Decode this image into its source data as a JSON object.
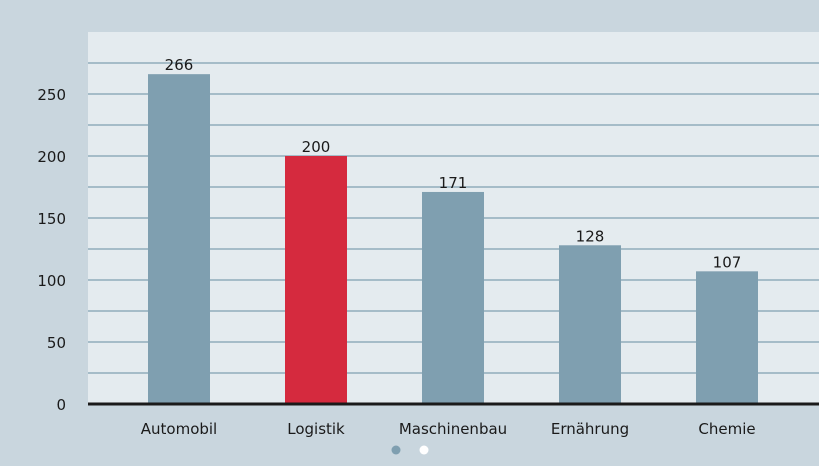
{
  "chart_data": {
    "type": "bar",
    "title": "",
    "xlabel": "",
    "ylabel": "",
    "categories": [
      "Automobil",
      "Logistik",
      "Maschinenbau",
      "Ernährung",
      "Chemie"
    ],
    "values": [
      266,
      200,
      171,
      128,
      107
    ],
    "data_labels": [
      "266",
      "200",
      "171",
      "128",
      "107"
    ],
    "ylim": [
      0,
      275
    ],
    "yticks": [
      0,
      50,
      100,
      150,
      200,
      250
    ],
    "ytick_labels": [
      "0",
      "50",
      "100",
      "150",
      "200",
      "250"
    ],
    "grid": true,
    "legend": "none",
    "colors": {
      "background": "#c9d6de",
      "plot_background": "#e4ebef",
      "bar_default": "#7f9fb0",
      "bar_highlight": "#d52a3e",
      "highlight_index": 1,
      "gridline": "#7f9fb0",
      "axis": "#1a1a1a"
    }
  },
  "pager": {
    "dots": 2,
    "active_index": 0,
    "active_color": "#7f9fb0",
    "inactive_color": "#ffffff"
  }
}
